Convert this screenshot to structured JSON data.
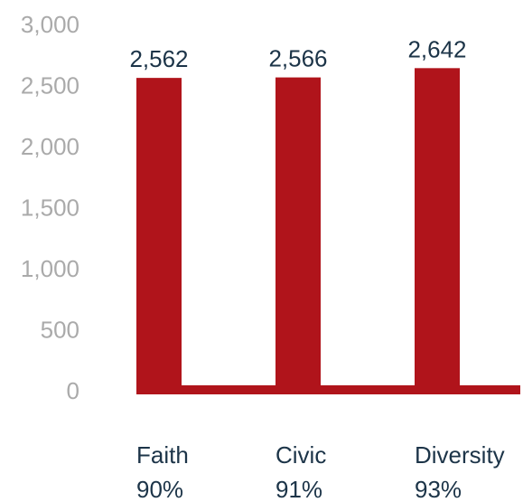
{
  "chart_data": {
    "type": "bar",
    "categories": [
      "Faith",
      "Civic",
      "Diversity"
    ],
    "category_percentages": [
      "90%",
      "91%",
      "93%"
    ],
    "values": [
      2562,
      2566,
      2642
    ],
    "value_labels": [
      "2,562",
      "2,566",
      "2,642"
    ],
    "ylim": [
      0,
      3000
    ],
    "y_ticks": [
      0,
      500,
      1000,
      1500,
      2000,
      2500,
      3000
    ],
    "y_tick_labels": [
      "0",
      "500",
      "1,000",
      "1,500",
      "2,000",
      "2,500",
      "3,000"
    ],
    "title": "",
    "xlabel": "",
    "ylabel": "",
    "grid": false,
    "legend": "none"
  },
  "colors": {
    "bar": "#b0141b",
    "baseline": "#b0141b",
    "tick_text": "#aaaaaa",
    "label_text": "#1c3448"
  }
}
